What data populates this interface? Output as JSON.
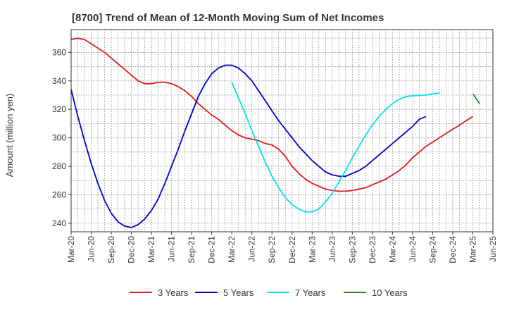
{
  "chart_data": {
    "type": "line",
    "title": "[8700]  Trend of Mean of 12-Month Moving Sum of Net Incomes",
    "xlabel": "",
    "ylabel": "Amount (million yen)",
    "ylim": [
      234,
      376
    ],
    "yticks": [
      240,
      260,
      280,
      300,
      320,
      340,
      360
    ],
    "xticks": [
      "Mar-20",
      "Jun-20",
      "Sep-20",
      "Dec-20",
      "Mar-21",
      "Jun-21",
      "Sep-21",
      "Dec-21",
      "Mar-22",
      "Jun-22",
      "Sep-22",
      "Dec-22",
      "Mar-23",
      "Jun-23",
      "Sep-23",
      "Dec-23",
      "Mar-24",
      "Jun-24",
      "Sep-24",
      "Dec-24",
      "Mar-25",
      "Jun-25"
    ],
    "grid": true,
    "legend_position": "bottom",
    "series": [
      {
        "name": "3 Years",
        "color": "#e41a1c",
        "start": "Mar-20",
        "values": [
          369,
          370,
          369,
          366,
          363,
          360,
          356,
          352,
          348,
          344,
          340,
          338,
          338,
          339,
          339,
          338,
          336,
          333,
          329,
          324,
          320,
          316,
          313,
          309,
          305,
          302,
          300,
          299,
          298,
          296,
          295,
          292,
          287,
          280,
          275,
          271,
          268,
          266,
          264,
          263,
          262.5,
          262.5,
          263,
          264,
          265,
          267,
          269,
          271,
          274,
          277,
          281,
          286,
          290,
          294,
          297,
          300,
          303,
          306,
          309,
          312,
          315
        ]
      },
      {
        "name": "5 Years",
        "color": "#0000cc",
        "start": "Mar-20",
        "values": [
          334,
          315,
          298,
          282,
          268,
          256,
          247,
          241,
          238,
          237,
          239,
          243,
          249,
          257,
          268,
          280,
          292,
          305,
          317,
          329,
          338,
          345,
          349,
          351,
          351,
          349,
          345,
          340,
          333,
          326,
          319,
          312,
          306,
          300,
          294,
          289,
          284,
          280,
          276,
          274,
          273,
          273,
          275,
          277,
          280,
          284,
          288,
          292,
          296,
          300,
          304,
          308,
          313,
          315
        ]
      },
      {
        "name": "7 Years",
        "color": "#00e6e6",
        "start": "Mar-22",
        "values": [
          339,
          328,
          317,
          305,
          294,
          283,
          273,
          265,
          258,
          253,
          250,
          248,
          248,
          250,
          255,
          261,
          269,
          277,
          286,
          294,
          302,
          309,
          315,
          320,
          324,
          327,
          329,
          329.5,
          329.8,
          330,
          331,
          331.5
        ]
      },
      {
        "name": "10 Years",
        "color": "#1e8a1e",
        "start": "Mar-25",
        "values": [
          331,
          324
        ]
      }
    ]
  }
}
